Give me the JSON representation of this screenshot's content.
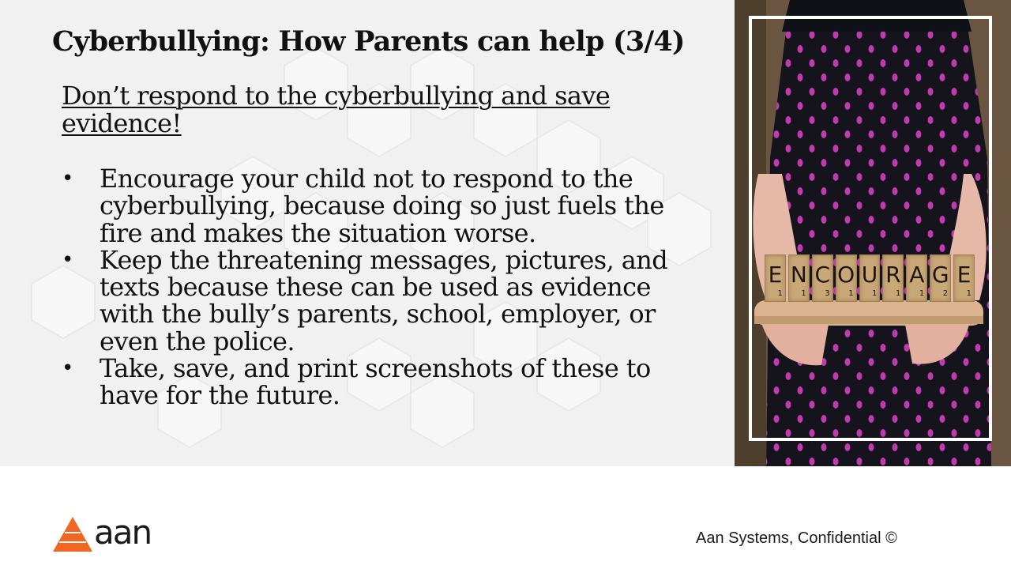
{
  "slide": {
    "title": "Cyberbullying: How Parents can help (3/4)",
    "subtitle": "Don’t respond to the cyberbullying and save evidence!",
    "bullet_marker": "•",
    "bullets": [
      "Encourage your child not to respond to the cyberbullying, because doing so just fuels the fire and makes the situation worse.",
      "Keep the threatening messages, pictures, and texts because these can be used as evidence with the bully’s parents, school, employer, or even the police.",
      "Take, save, and print screenshots of these to have for the future."
    ]
  },
  "photo": {
    "tiles": [
      {
        "letter": "E",
        "score": "1"
      },
      {
        "letter": "N",
        "score": "1"
      },
      {
        "letter": "C",
        "score": "3"
      },
      {
        "letter": "O",
        "score": "1"
      },
      {
        "letter": "U",
        "score": "1"
      },
      {
        "letter": "R",
        "score": "1"
      },
      {
        "letter": "A",
        "score": "1"
      },
      {
        "letter": "G",
        "score": "2"
      },
      {
        "letter": "E",
        "score": "1"
      }
    ]
  },
  "footer": {
    "logo_text": "aan",
    "confidential": "Aan Systems, Confidential ©"
  },
  "colors": {
    "logo_orange": "#f26522",
    "dress_polka": "#c03ab0",
    "background": "#f1f1f1"
  }
}
